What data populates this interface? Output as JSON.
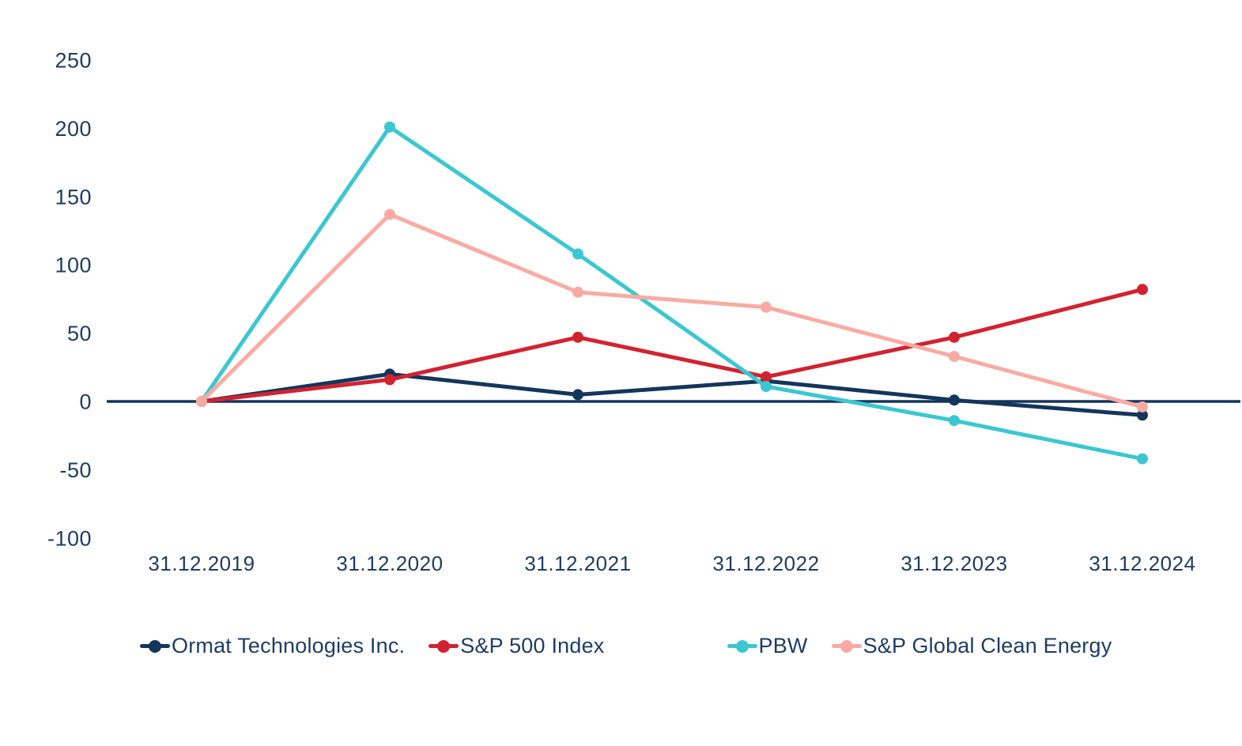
{
  "chart_data": {
    "type": "line",
    "title": "",
    "xlabel": "",
    "ylabel": "",
    "x_categories": [
      "31.12.2019",
      "31.12.2020",
      "31.12.2021",
      "31.12.2022",
      "31.12.2023",
      "31.12.2024"
    ],
    "series": [
      {
        "name": "Ormat Technologies Inc.",
        "color": "#14355c",
        "values": [
          0,
          20,
          5,
          15,
          1,
          -10
        ]
      },
      {
        "name": "S&P 500 Index",
        "color": "#d22230",
        "values": [
          0,
          16,
          47,
          18,
          47,
          82
        ]
      },
      {
        "name": "PBW",
        "color": "#3bc7d1",
        "values": [
          0,
          201,
          108,
          11,
          -14,
          -42
        ]
      },
      {
        "name": "S&P Global Clean Energy",
        "color": "#f9aba3",
        "values": [
          0,
          137,
          80,
          69,
          33,
          -4
        ]
      }
    ],
    "yticks": [
      250,
      200,
      150,
      100,
      50,
      0,
      -50,
      -100
    ],
    "ylim": [
      -100,
      250
    ],
    "grid": false,
    "legend_position": "bottom",
    "axis_color": "#14355c",
    "text_color": "#1e3c64",
    "marker_style": "circle"
  }
}
